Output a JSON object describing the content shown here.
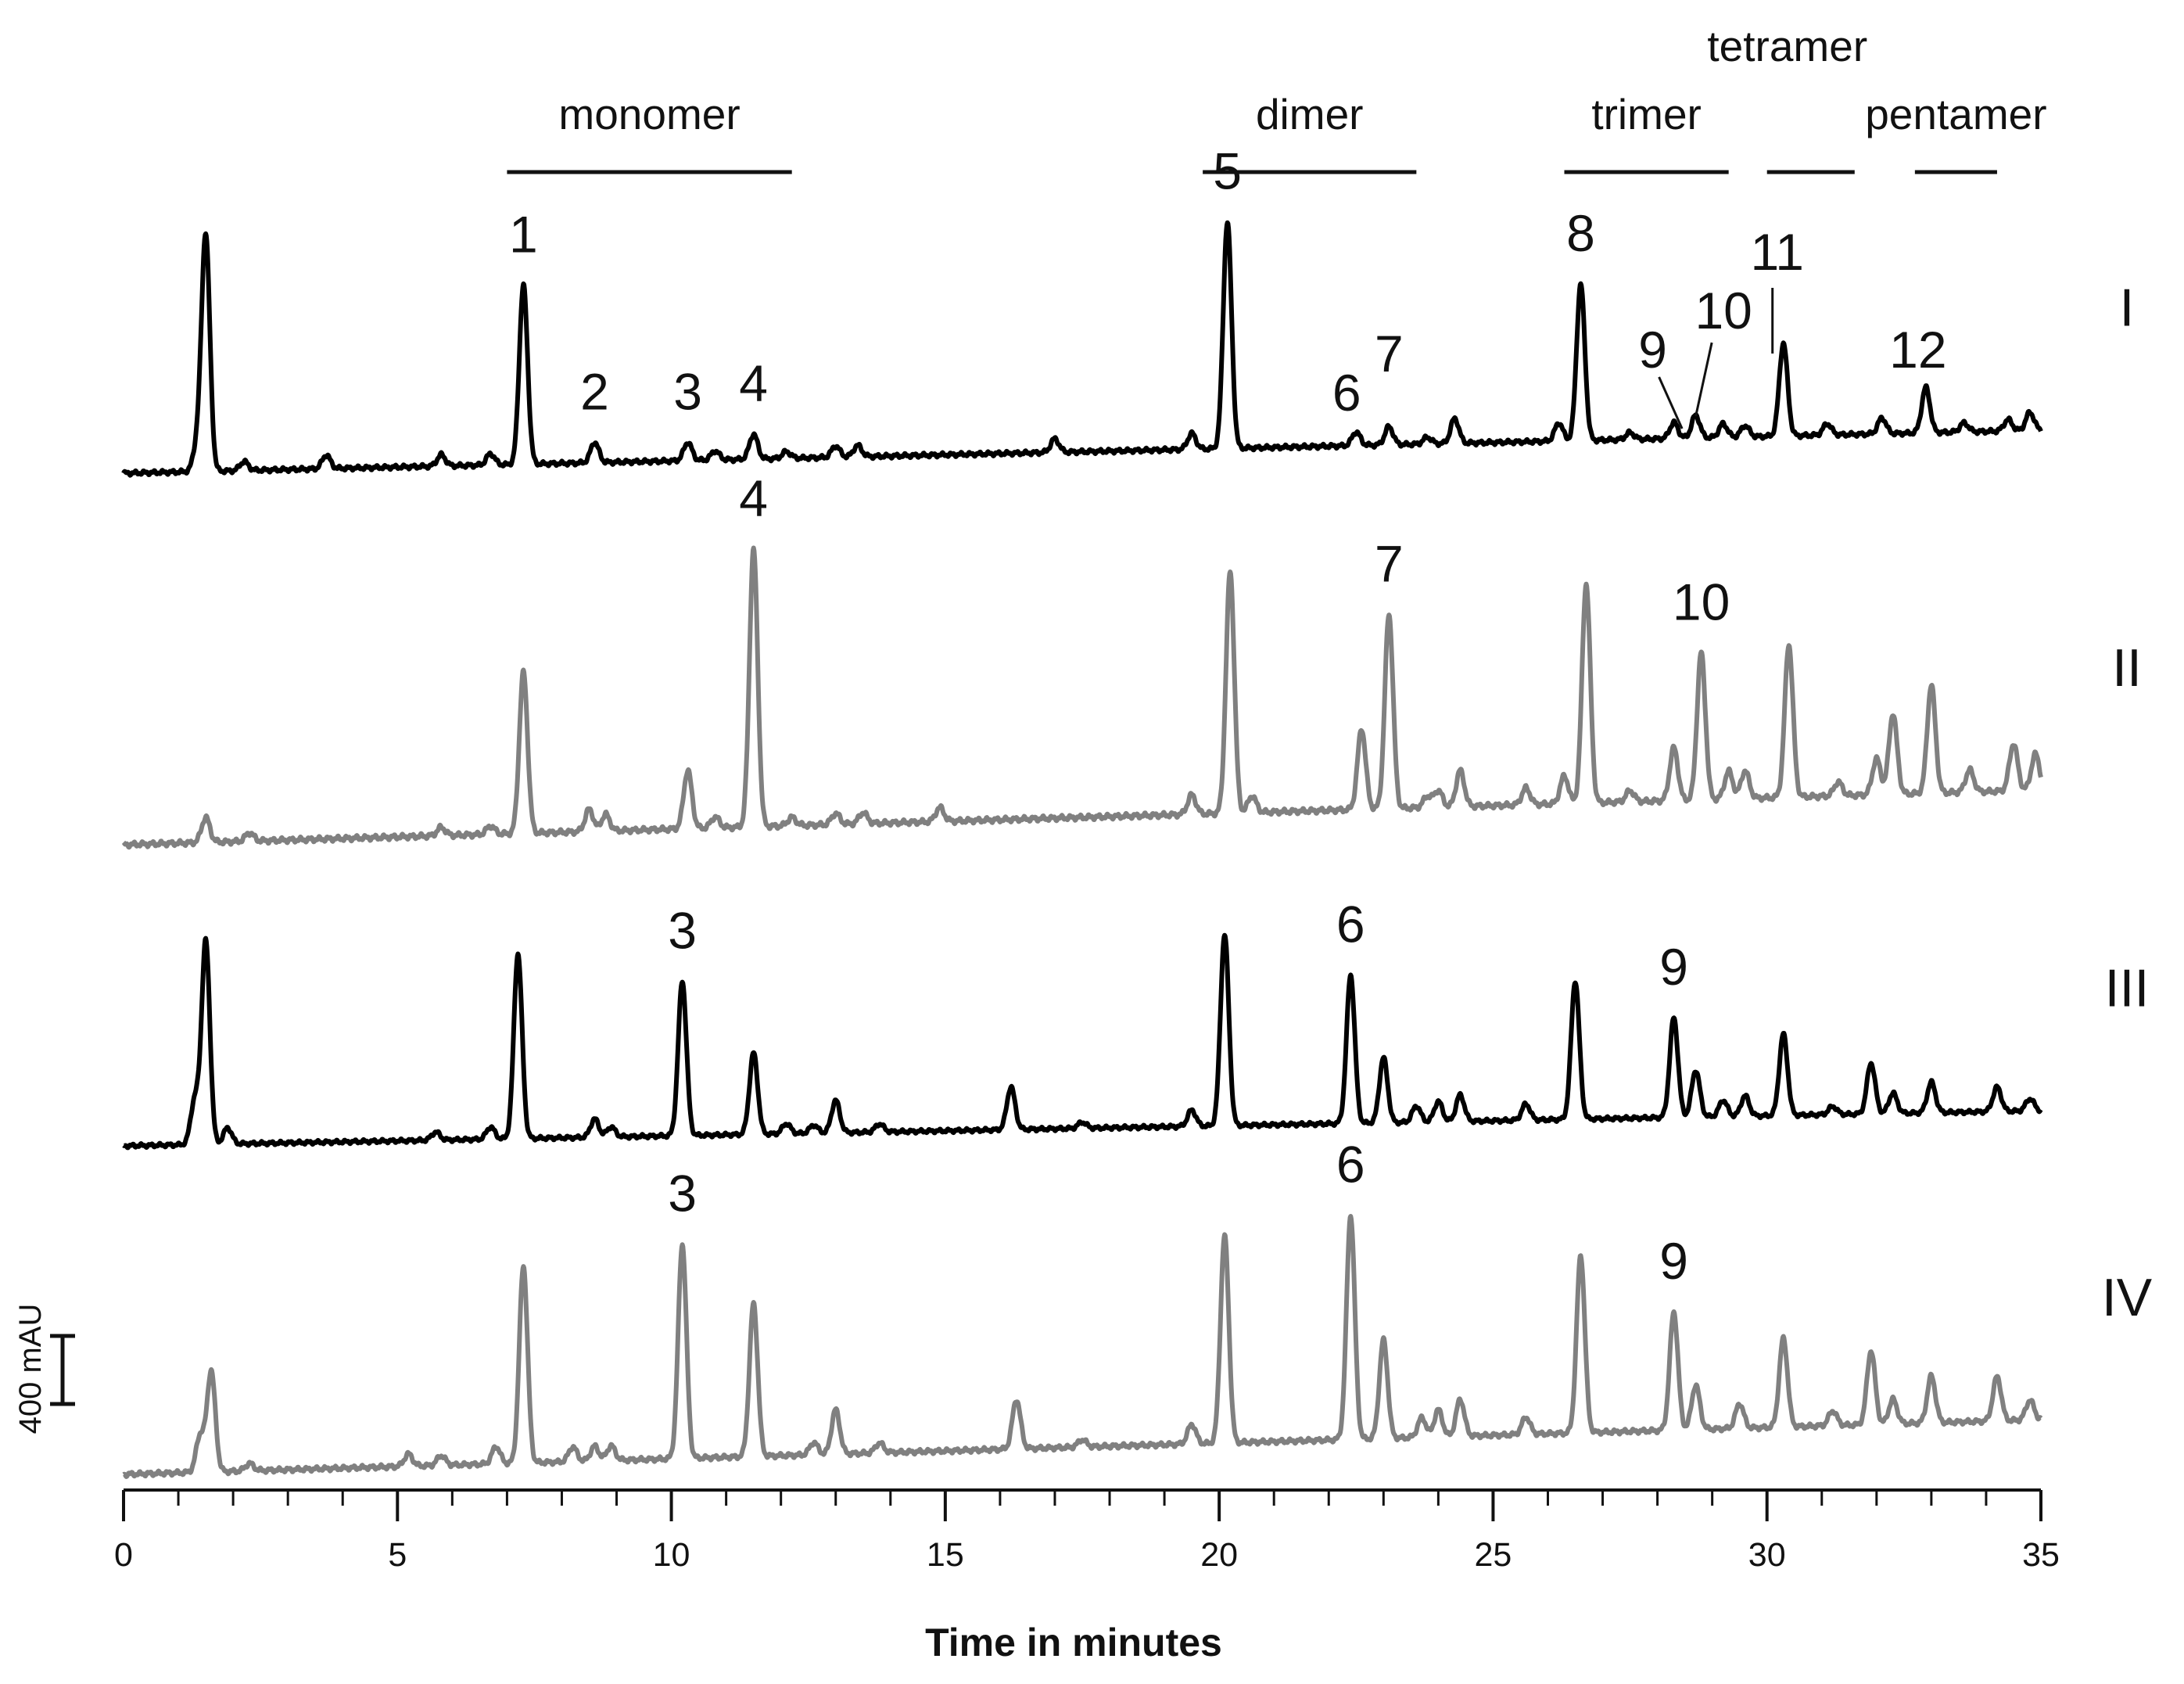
{
  "chart_data": {
    "type": "line",
    "xlabel": "Time in minutes",
    "xlim": [
      0,
      35
    ],
    "x_ticks": [
      "0",
      "5",
      "10",
      "15",
      "20",
      "25",
      "30",
      "35"
    ],
    "grid": false,
    "scale_bar": {
      "label": "400 mAU",
      "value_mAU": 400
    },
    "groups": [
      {
        "label": "monomer",
        "x_start": 7.0,
        "x_end": 12.2
      },
      {
        "label": "dimer",
        "x_start": 19.7,
        "x_end": 23.6
      },
      {
        "label": "trimer",
        "x_start": 26.3,
        "x_end": 29.3
      },
      {
        "label": "tetramer",
        "x_start": 30.0,
        "x_end": 31.6
      },
      {
        "label": "pentamer",
        "x_start": 32.7,
        "x_end": 34.2
      }
    ],
    "series": [
      {
        "name": "I",
        "color": "#000000",
        "peaks": [
          [
            1.35,
            0.12
          ],
          [
            1.5,
            1.04
          ],
          [
            2.2,
            0.04
          ],
          [
            3.7,
            0.06
          ],
          [
            5.8,
            0.05
          ],
          [
            6.7,
            0.05
          ],
          [
            7.3,
            0.79
          ],
          [
            8.6,
            0.09
          ],
          [
            10.3,
            0.08
          ],
          [
            10.8,
            0.04
          ],
          [
            11.5,
            0.11
          ],
          [
            12.1,
            0.03
          ],
          [
            13.0,
            0.05
          ],
          [
            13.4,
            0.05
          ],
          [
            17.0,
            0.06
          ],
          [
            19.5,
            0.07
          ],
          [
            20.15,
            1.0
          ],
          [
            22.5,
            0.06
          ],
          [
            23.1,
            0.08
          ],
          [
            23.8,
            0.03
          ],
          [
            24.3,
            0.11
          ],
          [
            26.2,
            0.08
          ],
          [
            26.6,
            0.69
          ],
          [
            27.5,
            0.03
          ],
          [
            28.3,
            0.07
          ],
          [
            28.7,
            0.1
          ],
          [
            29.2,
            0.06
          ],
          [
            29.6,
            0.05
          ],
          [
            30.3,
            0.41
          ],
          [
            31.1,
            0.05
          ],
          [
            32.1,
            0.07
          ],
          [
            32.9,
            0.2
          ],
          [
            33.6,
            0.04
          ],
          [
            34.4,
            0.05
          ],
          [
            34.8,
            0.08
          ]
        ],
        "peak_labels": [
          {
            "text": "1",
            "x": 7.3
          },
          {
            "text": "2",
            "x": 8.6
          },
          {
            "text": "3",
            "x": 10.3
          },
          {
            "text": "4",
            "x": 11.5
          },
          {
            "text": "5",
            "x": 20.15
          },
          {
            "text": "6",
            "x": 22.5
          },
          {
            "text": "7",
            "x": 23.1
          },
          {
            "text": "8",
            "x": 26.6
          },
          {
            "text": "9",
            "x": 28.3
          },
          {
            "text": "10",
            "x": 28.7
          },
          {
            "text": "11",
            "x": 30.3
          },
          {
            "text": "12",
            "x": 32.9
          }
        ]
      },
      {
        "name": "II",
        "color": "#808080",
        "peaks": [
          [
            1.5,
            0.09
          ],
          [
            2.3,
            0.03
          ],
          [
            5.8,
            0.03
          ],
          [
            6.7,
            0.03
          ],
          [
            7.3,
            0.58
          ],
          [
            8.5,
            0.08
          ],
          [
            8.8,
            0.06
          ],
          [
            10.3,
            0.21
          ],
          [
            10.8,
            0.04
          ],
          [
            11.5,
            1.0
          ],
          [
            12.2,
            0.03
          ],
          [
            13.0,
            0.04
          ],
          [
            13.5,
            0.04
          ],
          [
            14.9,
            0.05
          ],
          [
            19.5,
            0.07
          ],
          [
            20.2,
            0.87
          ],
          [
            20.6,
            0.06
          ],
          [
            22.6,
            0.29
          ],
          [
            23.1,
            0.7
          ],
          [
            23.8,
            0.04
          ],
          [
            24.0,
            0.06
          ],
          [
            24.4,
            0.13
          ],
          [
            25.6,
            0.06
          ],
          [
            26.3,
            0.1
          ],
          [
            26.7,
            0.79
          ],
          [
            27.5,
            0.04
          ],
          [
            28.3,
            0.19
          ],
          [
            28.8,
            0.53
          ],
          [
            29.3,
            0.1
          ],
          [
            29.6,
            0.1
          ],
          [
            30.4,
            0.55
          ],
          [
            31.3,
            0.05
          ],
          [
            32.0,
            0.13
          ],
          [
            32.3,
            0.29
          ],
          [
            33.0,
            0.39
          ],
          [
            33.7,
            0.08
          ],
          [
            34.5,
            0.17
          ],
          [
            34.9,
            0.13
          ]
        ],
        "peak_labels": [
          {
            "text": "4",
            "x": 11.5
          },
          {
            "text": "7",
            "x": 23.1
          },
          {
            "text": "10",
            "x": 28.8
          }
        ]
      },
      {
        "name": "III",
        "color": "#000000",
        "peaks": [
          [
            1.3,
            0.22
          ],
          [
            1.5,
            1.0
          ],
          [
            1.9,
            0.08
          ],
          [
            5.7,
            0.04
          ],
          [
            6.7,
            0.06
          ],
          [
            7.2,
            0.91
          ],
          [
            8.6,
            0.09
          ],
          [
            8.9,
            0.05
          ],
          [
            10.2,
            0.76
          ],
          [
            11.5,
            0.4
          ],
          [
            12.1,
            0.05
          ],
          [
            12.6,
            0.04
          ],
          [
            13.0,
            0.16
          ],
          [
            13.8,
            0.04
          ],
          [
            16.2,
            0.21
          ],
          [
            17.5,
            0.03
          ],
          [
            19.5,
            0.08
          ],
          [
            20.1,
            0.94
          ],
          [
            22.4,
            0.73
          ],
          [
            23.0,
            0.32
          ],
          [
            23.6,
            0.08
          ],
          [
            24.0,
            0.1
          ],
          [
            24.4,
            0.13
          ],
          [
            25.6,
            0.08
          ],
          [
            26.5,
            0.68
          ],
          [
            28.3,
            0.49
          ],
          [
            28.7,
            0.23
          ],
          [
            29.2,
            0.08
          ],
          [
            29.6,
            0.1
          ],
          [
            30.3,
            0.4
          ],
          [
            31.2,
            0.04
          ],
          [
            31.9,
            0.25
          ],
          [
            32.3,
            0.1
          ],
          [
            33.0,
            0.15
          ],
          [
            34.2,
            0.12
          ],
          [
            34.8,
            0.06
          ]
        ],
        "peak_labels": [
          {
            "text": "3",
            "x": 10.2
          },
          {
            "text": "6",
            "x": 22.4
          },
          {
            "text": "9",
            "x": 28.3
          }
        ]
      },
      {
        "name": "IV",
        "color": "#808080",
        "peaks": [
          [
            1.4,
            0.15
          ],
          [
            1.6,
            0.41
          ],
          [
            2.3,
            0.03
          ],
          [
            5.2,
            0.05
          ],
          [
            5.8,
            0.04
          ],
          [
            6.8,
            0.07
          ],
          [
            7.3,
            0.8
          ],
          [
            8.2,
            0.06
          ],
          [
            8.6,
            0.06
          ],
          [
            8.9,
            0.06
          ],
          [
            10.2,
            0.87
          ],
          [
            11.5,
            0.62
          ],
          [
            12.6,
            0.05
          ],
          [
            13.0,
            0.18
          ],
          [
            13.8,
            0.04
          ],
          [
            16.3,
            0.2
          ],
          [
            17.5,
            0.03
          ],
          [
            19.5,
            0.08
          ],
          [
            20.1,
            0.84
          ],
          [
            22.4,
            0.91
          ],
          [
            23.0,
            0.4
          ],
          [
            23.7,
            0.08
          ],
          [
            24.0,
            0.11
          ],
          [
            24.4,
            0.15
          ],
          [
            25.6,
            0.07
          ],
          [
            26.6,
            0.72
          ],
          [
            28.3,
            0.48
          ],
          [
            28.7,
            0.18
          ],
          [
            29.5,
            0.1
          ],
          [
            30.3,
            0.36
          ],
          [
            31.2,
            0.06
          ],
          [
            31.9,
            0.3
          ],
          [
            32.3,
            0.1
          ],
          [
            33.0,
            0.19
          ],
          [
            34.2,
            0.18
          ],
          [
            34.8,
            0.08
          ]
        ],
        "peak_labels": [
          {
            "text": "3",
            "x": 10.2
          },
          {
            "text": "6",
            "x": 22.4
          },
          {
            "text": "9",
            "x": 28.3
          }
        ]
      }
    ]
  }
}
